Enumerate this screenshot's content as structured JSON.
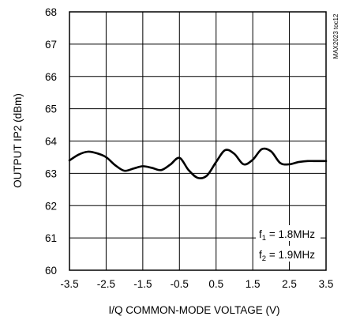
{
  "chart_data": {
    "type": "line",
    "title": "",
    "xlabel": "I/Q COMMON-MODE VOLTAGE (V)",
    "ylabel": "OUTPUT IP2 (dBm)",
    "xlim": [
      -3.5,
      3.5
    ],
    "ylim": [
      60,
      68
    ],
    "x_ticks": [
      -3.5,
      -2.5,
      -1.5,
      -0.5,
      0.5,
      1.5,
      2.5,
      3.5
    ],
    "y_ticks": [
      60,
      61,
      62,
      63,
      64,
      65,
      66,
      67,
      68
    ],
    "x_tick_labels": [
      "-3.5",
      "-2.5",
      "-1.5",
      "-0.5",
      "0.5",
      "1.5",
      "2.5",
      "3.5"
    ],
    "y_tick_labels": [
      "60",
      "61",
      "62",
      "63",
      "64",
      "65",
      "66",
      "67",
      "68"
    ],
    "grid": true,
    "series": [
      {
        "x": [
          -3.5,
          -3.25,
          -3.0,
          -2.75,
          -2.5,
          -2.25,
          -2.0,
          -1.75,
          -1.5,
          -1.25,
          -1.0,
          -0.75,
          -0.5,
          -0.25,
          0.0,
          0.25,
          0.5,
          0.75,
          1.0,
          1.25,
          1.5,
          1.75,
          2.0,
          2.25,
          2.5,
          2.75,
          3.0,
          3.25,
          3.5
        ],
        "y": [
          63.4,
          63.58,
          63.67,
          63.62,
          63.5,
          63.25,
          63.08,
          63.15,
          63.22,
          63.17,
          63.1,
          63.27,
          63.48,
          63.1,
          62.86,
          62.93,
          63.35,
          63.72,
          63.6,
          63.28,
          63.42,
          63.75,
          63.68,
          63.32,
          63.28,
          63.35,
          63.38,
          63.38,
          63.38
        ],
        "color": "#000000"
      }
    ],
    "annotations": [
      {
        "text_parts": [
          "f",
          "1",
          " = 1.8MHz"
        ],
        "position": "bottom-right"
      },
      {
        "text_parts": [
          "f",
          "2",
          " = 1.9MHz"
        ],
        "position": "bottom-right"
      }
    ],
    "watermark": "MAX2023 toc12"
  }
}
